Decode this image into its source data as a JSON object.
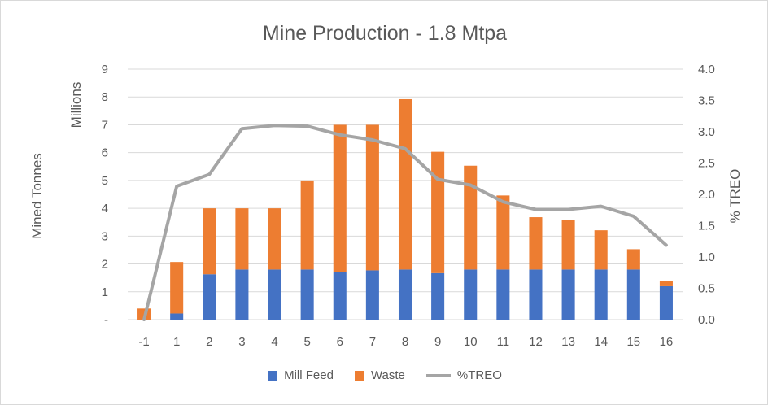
{
  "chart_data": {
    "type": "bar",
    "title": "Mine Production - 1.8 Mtpa",
    "categories": [
      "-1",
      "1",
      "2",
      "3",
      "4",
      "5",
      "6",
      "7",
      "8",
      "9",
      "10",
      "11",
      "12",
      "13",
      "14",
      "15",
      "16"
    ],
    "series": [
      {
        "name": "Mill Feed",
        "kind": "stacked-bar",
        "axis": "left",
        "color": "#4472c4",
        "values": [
          0,
          0.22,
          1.63,
          1.8,
          1.8,
          1.8,
          1.72,
          1.77,
          1.8,
          1.67,
          1.8,
          1.8,
          1.8,
          1.8,
          1.8,
          1.8,
          1.2
        ]
      },
      {
        "name": "Waste",
        "kind": "stacked-bar",
        "axis": "left",
        "color": "#ed7d31",
        "values": [
          0.4,
          1.85,
          2.37,
          2.2,
          2.2,
          3.2,
          5.28,
          5.23,
          6.12,
          4.36,
          3.73,
          2.66,
          1.88,
          1.77,
          1.41,
          0.73,
          0.18
        ]
      },
      {
        "name": "%TREO",
        "kind": "line",
        "axis": "right",
        "color": "#a5a5a5",
        "values": [
          0.0,
          2.13,
          2.32,
          3.05,
          3.1,
          3.09,
          2.95,
          2.87,
          2.73,
          2.24,
          2.15,
          1.88,
          1.76,
          1.76,
          1.81,
          1.65,
          1.19
        ]
      }
    ],
    "y_left": {
      "label": "Mined Tonnes",
      "unit_label": "Millions",
      "ticks": [
        "-",
        "1",
        "2",
        "3",
        "4",
        "5",
        "6",
        "7",
        "8",
        "9"
      ],
      "ylim": [
        0,
        9
      ]
    },
    "y_right": {
      "label": "% TREO",
      "ticks": [
        "0.0",
        "0.5",
        "1.0",
        "1.5",
        "2.0",
        "2.5",
        "3.0",
        "3.5",
        "4.0"
      ],
      "ylim": [
        0,
        4
      ]
    },
    "grid": true,
    "legend_position": "bottom"
  }
}
